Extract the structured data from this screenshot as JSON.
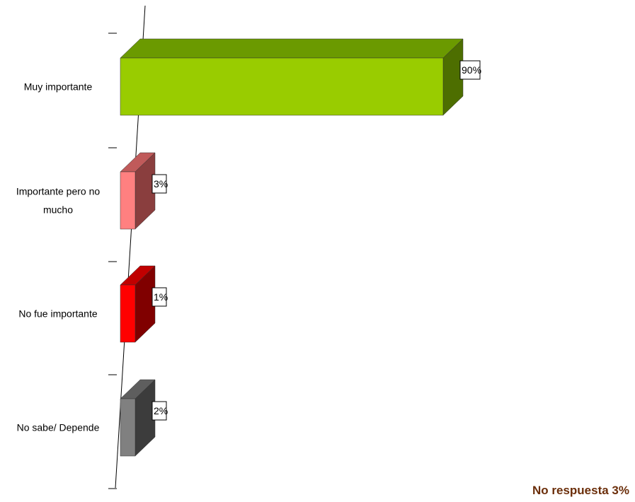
{
  "chart_data": {
    "type": "bar",
    "orientation": "horizontal",
    "style": "3d",
    "categories": [
      [
        "Muy importante"
      ],
      [
        "Importante pero no",
        "mucho"
      ],
      [
        "No fue importante"
      ],
      [
        "No sabe/ Depende"
      ]
    ],
    "values": [
      90,
      3,
      1,
      2
    ],
    "value_labels": [
      "90%",
      "3%",
      "1%",
      "2%"
    ],
    "colors": [
      {
        "front": "#99cc00",
        "top": "#6b9a00",
        "side": "#4d6e00"
      },
      {
        "front": "#ff8080",
        "top": "#c05a5a",
        "side": "#8a3e3e"
      },
      {
        "front": "#ff0000",
        "top": "#c00000",
        "side": "#800000"
      },
      {
        "front": "#808080",
        "top": "#5e5e5e",
        "side": "#3c3c3c"
      }
    ],
    "grid": false,
    "legend": "none"
  },
  "footnote": "No respuesta 3%"
}
